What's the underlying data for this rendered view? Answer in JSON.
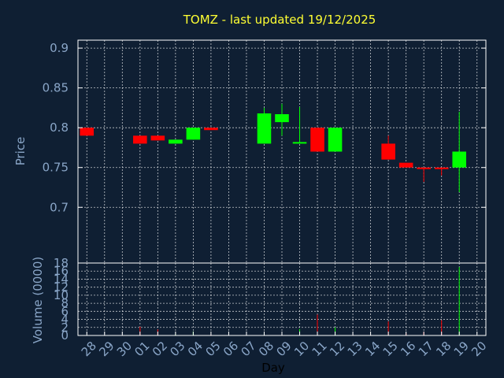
{
  "chart_data": {
    "type": "candlestick",
    "title": "TOMZ - last updated 19/12/2025",
    "xlabel": "Day",
    "price_panel": {
      "ylabel": "Price",
      "ylim": [
        0.63,
        0.91
      ],
      "yticks": [
        0.7,
        0.75,
        0.8,
        0.85,
        0.9
      ],
      "ytick_labels": [
        "0.7",
        "0.75",
        "0.8",
        "0.85",
        "0.9"
      ]
    },
    "volume_panel": {
      "ylabel": "Volume (0000)",
      "ylim": [
        0,
        18
      ],
      "yticks": [
        0,
        2,
        4,
        6,
        8,
        10,
        12,
        14,
        16,
        18
      ],
      "ytick_labels": [
        "0",
        "2",
        "4",
        "6",
        "8",
        "10",
        "12",
        "14",
        "16",
        "18"
      ]
    },
    "x_tick_labels": [
      "28",
      "29",
      "30",
      "01",
      "02",
      "03",
      "04",
      "05",
      "06",
      "07",
      "08",
      "09",
      "10",
      "11",
      "12",
      "13",
      "14",
      "15",
      "16",
      "17",
      "18",
      "19",
      "20"
    ],
    "candles": [
      {
        "x": "28",
        "open": 0.8,
        "high": 0.8,
        "low": 0.79,
        "close": 0.79,
        "volume": 0.0
      },
      {
        "x": "01",
        "open": 0.79,
        "high": 0.79,
        "low": 0.78,
        "close": 0.78,
        "volume": 2.2
      },
      {
        "x": "02",
        "open": 0.79,
        "high": 0.79,
        "low": 0.784,
        "close": 0.784,
        "volume": 1.5
      },
      {
        "x": "03",
        "open": 0.78,
        "high": 0.785,
        "low": 0.78,
        "close": 0.785,
        "volume": 0.3
      },
      {
        "x": "04",
        "open": 0.785,
        "high": 0.8,
        "low": 0.785,
        "close": 0.8,
        "volume": 1.0
      },
      {
        "x": "05",
        "open": 0.8,
        "high": 0.8,
        "low": 0.797,
        "close": 0.797,
        "volume": 0.2
      },
      {
        "x": "08",
        "open": 0.78,
        "high": 0.825,
        "low": 0.78,
        "close": 0.818,
        "volume": 0.5
      },
      {
        "x": "09",
        "open": 0.807,
        "high": 0.83,
        "low": 0.79,
        "close": 0.817,
        "volume": 0.8
      },
      {
        "x": "10",
        "open": 0.78,
        "high": 0.826,
        "low": 0.78,
        "close": 0.782,
        "volume": 1.6
      },
      {
        "x": "11",
        "open": 0.8,
        "high": 0.8,
        "low": 0.77,
        "close": 0.77,
        "volume": 5.2
      },
      {
        "x": "12",
        "open": 0.77,
        "high": 0.8,
        "low": 0.77,
        "close": 0.8,
        "volume": 2.0
      },
      {
        "x": "15",
        "open": 0.78,
        "high": 0.79,
        "low": 0.76,
        "close": 0.76,
        "volume": 3.5
      },
      {
        "x": "16",
        "open": 0.756,
        "high": 0.756,
        "low": 0.75,
        "close": 0.75,
        "volume": 0.5
      },
      {
        "x": "17",
        "open": 0.75,
        "high": 0.75,
        "low": 0.732,
        "close": 0.748,
        "volume": 0.9
      },
      {
        "x": "18",
        "open": 0.75,
        "high": 0.75,
        "low": 0.74,
        "close": 0.748,
        "volume": 3.8
      },
      {
        "x": "19",
        "open": 0.75,
        "high": 0.82,
        "low": 0.719,
        "close": 0.77,
        "volume": 17.0
      }
    ],
    "colors": {
      "background": "#0f1f33",
      "up": "#00ff00",
      "down": "#ff0000",
      "title": "#ffff33",
      "axis_text": "#8aa6c8",
      "grid": "#ffffff",
      "frame": "#ffffff",
      "xlabel": "#000000"
    },
    "grid": true
  }
}
